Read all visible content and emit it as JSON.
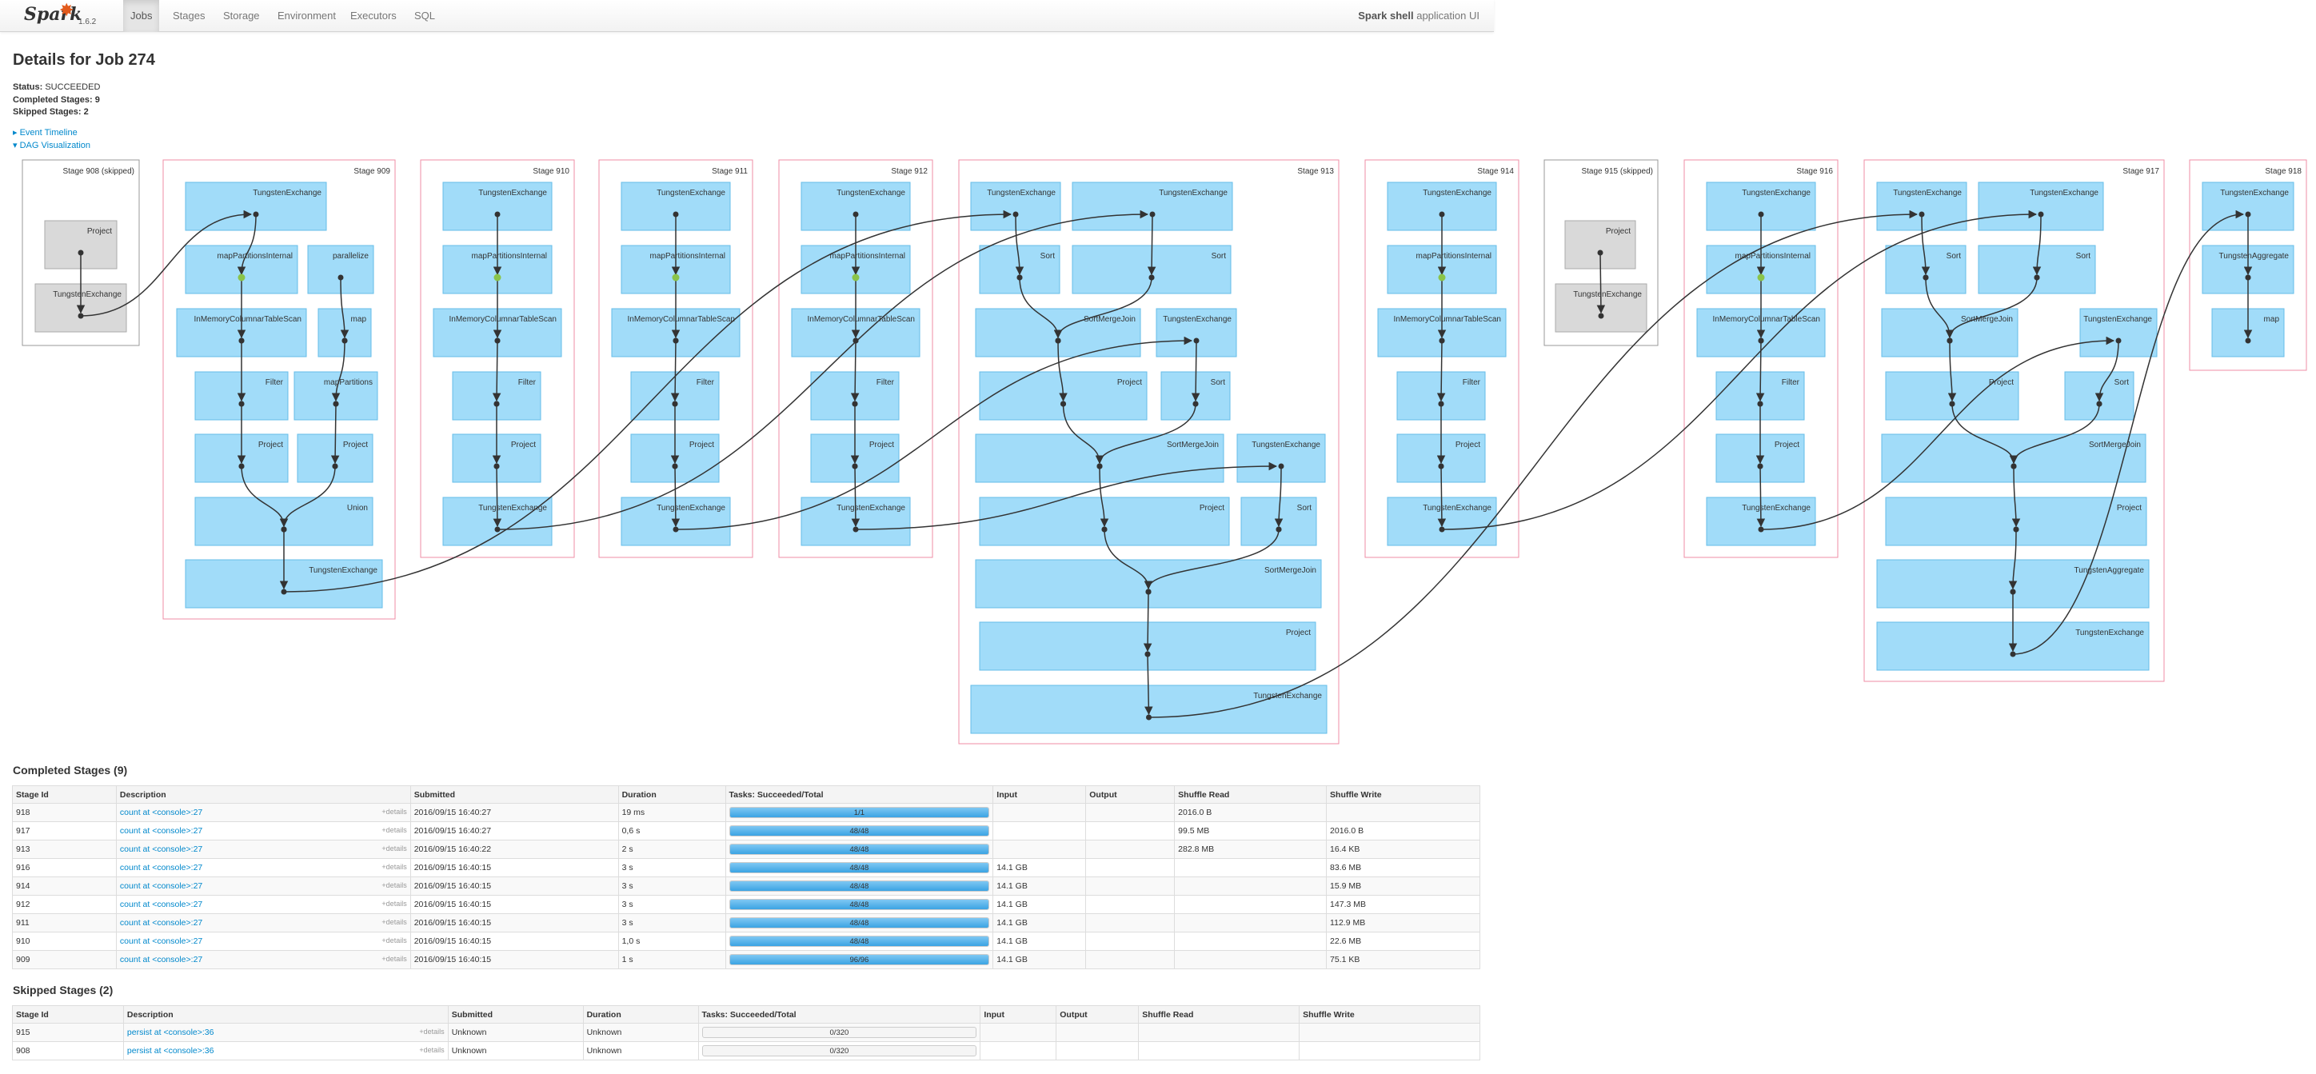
{
  "nav": {
    "version": "1.6.2",
    "brand": "Spark",
    "tabs": [
      "Jobs",
      "Stages",
      "Storage",
      "Environment",
      "Executors",
      "SQL"
    ],
    "active": "Jobs",
    "app_name": "Spark shell",
    "app_suffix": "application UI"
  },
  "page": {
    "title": "Details for Job 274",
    "status_label": "Status:",
    "status": "SUCCEEDED",
    "completed_label": "Completed Stages:",
    "completed_count": "9",
    "skipped_label": "Skipped Stages:",
    "skipped_count": "2",
    "event_timeline": "Event Timeline",
    "dag_viz": "DAG Visualization"
  },
  "dag": {
    "stages": [
      {
        "label": "Stage 908 (skipped)",
        "skipped": true,
        "ops": [
          "Project",
          "TungstenExchange"
        ]
      },
      {
        "label": "Stage 909",
        "ops": [
          "TungstenExchange",
          "mapPartitionsInternal",
          "InMemoryColumnarTableScan",
          "Filter",
          "Project",
          "Union",
          "parallelize",
          "map",
          "mapPartitions",
          "Project",
          "TungstenExchange"
        ]
      },
      {
        "label": "Stage 910",
        "ops": [
          "TungstenExchange",
          "mapPartitionsInternal",
          "InMemoryColumnarTableScan",
          "Filter",
          "Project",
          "TungstenExchange"
        ]
      },
      {
        "label": "Stage 911",
        "ops": [
          "TungstenExchange",
          "mapPartitionsInternal",
          "InMemoryColumnarTableScan",
          "Filter",
          "Project",
          "TungstenExchange"
        ]
      },
      {
        "label": "Stage 912",
        "ops": [
          "TungstenExchange",
          "mapPartitionsInternal",
          "InMemoryColumnarTableScan",
          "Filter",
          "Project",
          "TungstenExchange"
        ]
      },
      {
        "label": "Stage 913",
        "ops": [
          "TungstenExchange",
          "TungstenExchange",
          "Sort",
          "Sort",
          "SortMergeJoin",
          "TungstenExchange",
          "Project",
          "Sort",
          "SortMergeJoin",
          "TungstenExchange",
          "Project",
          "Sort",
          "SortMergeJoin",
          "Project",
          "TungstenExchange"
        ]
      },
      {
        "label": "Stage 914",
        "ops": [
          "TungstenExchange",
          "mapPartitionsInternal",
          "InMemoryColumnarTableScan",
          "Filter",
          "Project",
          "TungstenExchange"
        ]
      },
      {
        "label": "Stage 915 (skipped)",
        "skipped": true,
        "ops": [
          "Project",
          "TungstenExchange"
        ]
      },
      {
        "label": "Stage 916",
        "ops": [
          "TungstenExchange",
          "mapPartitionsInternal",
          "InMemoryColumnarTableScan",
          "Filter",
          "Project",
          "TungstenExchange"
        ]
      },
      {
        "label": "Stage 917",
        "ops": [
          "TungstenExchange",
          "TungstenExchange",
          "Sort",
          "Sort",
          "SortMergeJoin",
          "TungstenExchange",
          "Project",
          "Sort",
          "SortMergeJoin",
          "Project",
          "TungstenAggregate",
          "TungstenExchange"
        ]
      },
      {
        "label": "Stage 918",
        "ops": [
          "TungstenExchange",
          "TungstenAggregate",
          "map"
        ]
      }
    ]
  },
  "completed": {
    "heading": "Completed Stages (9)",
    "columns": [
      "Stage Id",
      "Description",
      "Submitted",
      "Duration",
      "Tasks: Succeeded/Total",
      "Input",
      "Output",
      "Shuffle Read",
      "Shuffle Write"
    ],
    "details_label": "+details",
    "rows": [
      {
        "id": "918",
        "desc": "count at <console>:27",
        "submitted": "2016/09/15 16:40:27",
        "duration": "19 ms",
        "tasks": "1/1",
        "progress": 1,
        "input": "",
        "output": "",
        "read": "2016.0 B",
        "write": ""
      },
      {
        "id": "917",
        "desc": "count at <console>:27",
        "submitted": "2016/09/15 16:40:27",
        "duration": "0,6 s",
        "tasks": "48/48",
        "progress": 1,
        "input": "",
        "output": "",
        "read": "99.5 MB",
        "write": "2016.0 B"
      },
      {
        "id": "913",
        "desc": "count at <console>:27",
        "submitted": "2016/09/15 16:40:22",
        "duration": "2 s",
        "tasks": "48/48",
        "progress": 1,
        "input": "",
        "output": "",
        "read": "282.8 MB",
        "write": "16.4 KB"
      },
      {
        "id": "916",
        "desc": "count at <console>:27",
        "submitted": "2016/09/15 16:40:15",
        "duration": "3 s",
        "tasks": "48/48",
        "progress": 1,
        "input": "14.1 GB",
        "output": "",
        "read": "",
        "write": "83.6 MB"
      },
      {
        "id": "914",
        "desc": "count at <console>:27",
        "submitted": "2016/09/15 16:40:15",
        "duration": "3 s",
        "tasks": "48/48",
        "progress": 1,
        "input": "14.1 GB",
        "output": "",
        "read": "",
        "write": "15.9 MB"
      },
      {
        "id": "912",
        "desc": "count at <console>:27",
        "submitted": "2016/09/15 16:40:15",
        "duration": "3 s",
        "tasks": "48/48",
        "progress": 1,
        "input": "14.1 GB",
        "output": "",
        "read": "",
        "write": "147.3 MB"
      },
      {
        "id": "911",
        "desc": "count at <console>:27",
        "submitted": "2016/09/15 16:40:15",
        "duration": "3 s",
        "tasks": "48/48",
        "progress": 1,
        "input": "14.1 GB",
        "output": "",
        "read": "",
        "write": "112.9 MB"
      },
      {
        "id": "910",
        "desc": "count at <console>:27",
        "submitted": "2016/09/15 16:40:15",
        "duration": "1,0 s",
        "tasks": "48/48",
        "progress": 1,
        "input": "14.1 GB",
        "output": "",
        "read": "",
        "write": "22.6 MB"
      },
      {
        "id": "909",
        "desc": "count at <console>:27",
        "submitted": "2016/09/15 16:40:15",
        "duration": "1 s",
        "tasks": "96/96",
        "progress": 1,
        "input": "14.1 GB",
        "output": "",
        "read": "",
        "write": "75.1 KB"
      }
    ]
  },
  "skipped": {
    "heading": "Skipped Stages (2)",
    "columns": [
      "Stage Id",
      "Description",
      "Submitted",
      "Duration",
      "Tasks: Succeeded/Total",
      "Input",
      "Output",
      "Shuffle Read",
      "Shuffle Write"
    ],
    "details_label": "+details",
    "rows": [
      {
        "id": "915",
        "desc": "persist at <console>:36",
        "submitted": "Unknown",
        "duration": "Unknown",
        "tasks": "0/320",
        "progress": 0,
        "input": "",
        "output": "",
        "read": "",
        "write": ""
      },
      {
        "id": "908",
        "desc": "persist at <console>:36",
        "submitted": "Unknown",
        "duration": "Unknown",
        "tasks": "0/320",
        "progress": 0,
        "input": "",
        "output": "",
        "read": "",
        "write": ""
      }
    ]
  },
  "colors": {
    "node": "#a1dcf9",
    "node_border": "#65bde8",
    "stage_border": "#ef8ea5",
    "skipped_bg": "#d9d9d9",
    "link": "#0088cc"
  }
}
